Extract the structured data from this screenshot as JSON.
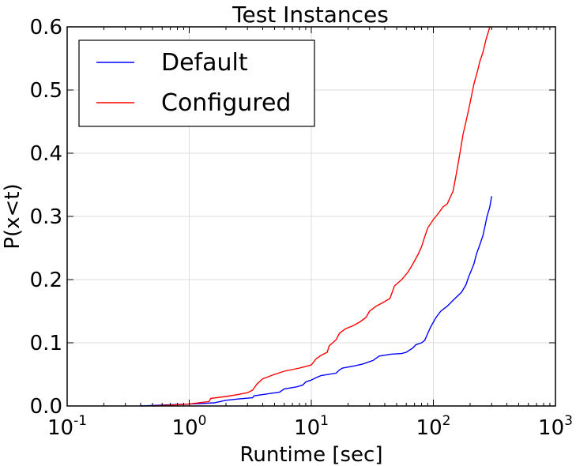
{
  "chart_data": {
    "type": "line",
    "title": "Test Instances",
    "xlabel": "Runtime [sec]",
    "ylabel": "P(x<t)",
    "xscale": "log",
    "xlim": [
      0.1,
      1000
    ],
    "ylim": [
      0,
      0.6
    ],
    "grid": true,
    "legend_position": "top-left",
    "x_ticks": [
      {
        "base": "10",
        "exp": "-1",
        "value": 0.1
      },
      {
        "base": "10",
        "exp": "0",
        "value": 1
      },
      {
        "base": "10",
        "exp": "1",
        "value": 10
      },
      {
        "base": "10",
        "exp": "2",
        "value": 100
      },
      {
        "base": "10",
        "exp": "3",
        "value": 1000
      }
    ],
    "y_ticks": [
      "0.0",
      "0.1",
      "0.2",
      "0.3",
      "0.4",
      "0.5",
      "0.6"
    ],
    "series": [
      {
        "name": "Default",
        "color": "#0000ff",
        "points": [
          [
            0.4,
            0.0
          ],
          [
            0.7,
            0.002
          ],
          [
            1.0,
            0.003
          ],
          [
            1.3,
            0.004
          ],
          [
            1.6,
            0.005
          ],
          [
            2.0,
            0.009
          ],
          [
            2.5,
            0.011
          ],
          [
            3.3,
            0.013
          ],
          [
            3.4,
            0.016
          ],
          [
            4.0,
            0.018
          ],
          [
            5.5,
            0.022
          ],
          [
            6.0,
            0.027
          ],
          [
            7.5,
            0.03
          ],
          [
            8.5,
            0.033
          ],
          [
            9.0,
            0.038
          ],
          [
            10,
            0.041
          ],
          [
            11,
            0.045
          ],
          [
            12,
            0.048
          ],
          [
            16,
            0.052
          ],
          [
            17,
            0.057
          ],
          [
            18,
            0.06
          ],
          [
            22,
            0.063
          ],
          [
            26,
            0.066
          ],
          [
            32,
            0.072
          ],
          [
            36,
            0.079
          ],
          [
            45,
            0.082
          ],
          [
            55,
            0.083
          ],
          [
            60,
            0.085
          ],
          [
            68,
            0.092
          ],
          [
            72,
            0.097
          ],
          [
            80,
            0.1
          ],
          [
            85,
            0.104
          ],
          [
            90,
            0.115
          ],
          [
            95,
            0.125
          ],
          [
            105,
            0.14
          ],
          [
            115,
            0.15
          ],
          [
            130,
            0.158
          ],
          [
            150,
            0.17
          ],
          [
            170,
            0.18
          ],
          [
            185,
            0.192
          ],
          [
            195,
            0.205
          ],
          [
            205,
            0.215
          ],
          [
            215,
            0.225
          ],
          [
            225,
            0.24
          ],
          [
            240,
            0.255
          ],
          [
            255,
            0.27
          ],
          [
            265,
            0.285
          ],
          [
            275,
            0.3
          ],
          [
            290,
            0.315
          ],
          [
            300,
            0.332
          ]
        ]
      },
      {
        "name": "Configured",
        "color": "#ff0000",
        "points": [
          [
            0.5,
            0.0
          ],
          [
            0.8,
            0.002
          ],
          [
            1.0,
            0.003
          ],
          [
            1.2,
            0.005
          ],
          [
            1.45,
            0.007
          ],
          [
            1.5,
            0.012
          ],
          [
            2.0,
            0.015
          ],
          [
            2.5,
            0.018
          ],
          [
            3.0,
            0.021
          ],
          [
            3.3,
            0.025
          ],
          [
            3.6,
            0.035
          ],
          [
            4.0,
            0.043
          ],
          [
            5.0,
            0.05
          ],
          [
            6.0,
            0.055
          ],
          [
            8.0,
            0.06
          ],
          [
            10,
            0.065
          ],
          [
            11,
            0.075
          ],
          [
            12,
            0.08
          ],
          [
            13.5,
            0.085
          ],
          [
            14,
            0.095
          ],
          [
            16,
            0.105
          ],
          [
            17,
            0.115
          ],
          [
            19,
            0.122
          ],
          [
            22,
            0.127
          ],
          [
            25,
            0.133
          ],
          [
            28,
            0.14
          ],
          [
            30,
            0.15
          ],
          [
            34,
            0.158
          ],
          [
            38,
            0.163
          ],
          [
            44,
            0.17
          ],
          [
            46,
            0.18
          ],
          [
            48,
            0.19
          ],
          [
            55,
            0.2
          ],
          [
            62,
            0.212
          ],
          [
            68,
            0.225
          ],
          [
            75,
            0.24
          ],
          [
            80,
            0.252
          ],
          [
            85,
            0.268
          ],
          [
            90,
            0.282
          ],
          [
            100,
            0.295
          ],
          [
            110,
            0.305
          ],
          [
            120,
            0.315
          ],
          [
            130,
            0.32
          ],
          [
            145,
            0.34
          ],
          [
            155,
            0.37
          ],
          [
            165,
            0.4
          ],
          [
            175,
            0.43
          ],
          [
            185,
            0.45
          ],
          [
            200,
            0.48
          ],
          [
            215,
            0.51
          ],
          [
            230,
            0.53
          ],
          [
            240,
            0.545
          ],
          [
            255,
            0.56
          ],
          [
            270,
            0.58
          ],
          [
            290,
            0.6
          ]
        ]
      }
    ]
  }
}
